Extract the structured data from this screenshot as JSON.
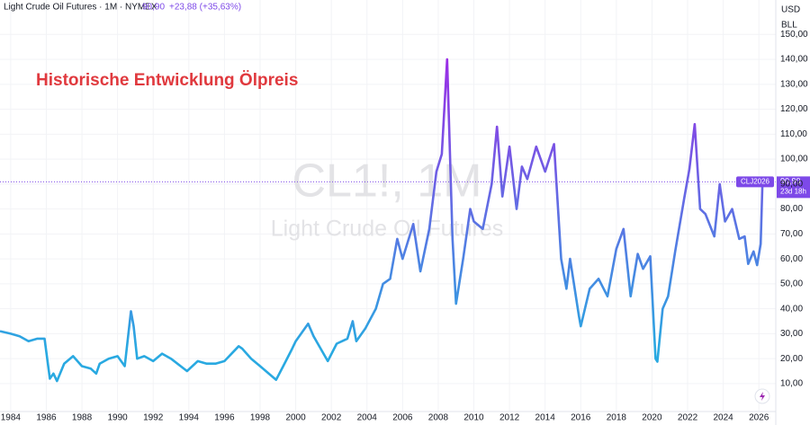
{
  "header": {
    "symbol": "Light Crude Oil Futures · 1M · NYMEX",
    "last": {
      "value": 90.9,
      "label": "90,90"
    },
    "change": "+23,88 (+35,63%)"
  },
  "axis_units": [
    "USD",
    "BLL"
  ],
  "watermark": {
    "symbol": "CL1!, 1M",
    "name": "Light Crude Oil Futures"
  },
  "price_label": {
    "contract": "CLJ2026",
    "countdown": "23d 18h"
  },
  "chart_data": {
    "type": "line",
    "title": "Historische Entwicklung Ölpreis",
    "colors": {
      "low": "#29a9e1",
      "high": "#9a2fe6"
    },
    "grid": true,
    "x": [
      1983.4,
      1984,
      1984.5,
      1985,
      1985.5,
      1985.9,
      1986.2,
      1986.4,
      1986.6,
      1987,
      1987.5,
      1988,
      1988.5,
      1988.8,
      1989,
      1989.5,
      1990,
      1990.4,
      1990.75,
      1990.9,
      1991.1,
      1991.5,
      1992,
      1992.5,
      1993,
      1993.9,
      1994.5,
      1995,
      1995.5,
      1996,
      1996.8,
      1997,
      1997.5,
      1998,
      1998.9,
      1999.3,
      1999.8,
      2000,
      2000.7,
      2001,
      2001.8,
      2002.3,
      2002.9,
      2003.2,
      2003.4,
      2003.9,
      2004.5,
      2004.9,
      2005.3,
      2005.7,
      2006,
      2006.6,
      2007,
      2007.5,
      2007.9,
      2008.2,
      2008.5,
      2008.8,
      2009,
      2009.4,
      2009.8,
      2010,
      2010.5,
      2011,
      2011.3,
      2011.6,
      2012,
      2012.4,
      2012.7,
      2013,
      2013.5,
      2014,
      2014.5,
      2014.9,
      2015.2,
      2015.4,
      2015.9,
      2016,
      2016.5,
      2017,
      2017.5,
      2018,
      2018.4,
      2018.8,
      2019.2,
      2019.5,
      2019.9,
      2020.2,
      2020.3,
      2020.6,
      2020.9,
      2021.3,
      2021.8,
      2022.1,
      2022.4,
      2022.7,
      2023,
      2023.5,
      2023.8,
      2024.1,
      2024.5,
      2024.9,
      2025.2,
      2025.4,
      2025.7,
      2025.9,
      2026.1,
      2026.2
    ],
    "values": [
      31,
      30,
      29,
      27,
      28,
      28,
      12,
      14,
      11,
      18,
      21,
      17,
      16,
      14,
      18,
      20,
      21,
      17,
      39,
      33,
      20,
      21,
      19,
      22,
      20,
      15,
      19,
      18,
      18,
      19,
      25,
      24,
      20,
      17,
      11.5,
      17,
      24,
      27,
      34,
      29,
      19,
      26,
      28,
      35,
      27,
      32,
      40,
      50,
      52,
      68,
      60,
      74,
      55,
      72,
      95,
      102,
      140,
      68,
      42,
      60,
      80,
      75,
      72,
      90,
      113,
      85,
      105,
      80,
      97,
      92,
      105,
      95,
      106,
      60,
      48,
      60,
      37,
      33,
      48,
      52,
      45,
      64,
      72,
      45,
      62,
      56,
      61,
      20,
      18.8,
      40,
      45,
      63,
      84,
      96,
      114,
      80,
      78,
      69,
      90,
      75,
      80,
      68,
      69,
      58,
      63,
      57.5,
      66,
      90.9
    ],
    "xlim": [
      1983.4,
      2026.95
    ],
    "ylim": [
      -1.2,
      163.8
    ],
    "xticks": [
      1984,
      1986,
      1988,
      1990,
      1992,
      1994,
      1996,
      1998,
      2000,
      2002,
      2004,
      2006,
      2008,
      2010,
      2012,
      2014,
      2016,
      2018,
      2020,
      2022,
      2024,
      2026
    ],
    "yticks": [
      {
        "value": 10,
        "label": "10,00"
      },
      {
        "value": 20,
        "label": "20,00"
      },
      {
        "value": 30,
        "label": "30,00"
      },
      {
        "value": 40,
        "label": "40,00"
      },
      {
        "value": 50,
        "label": "50,00"
      },
      {
        "value": 60,
        "label": "60,00"
      },
      {
        "value": 70,
        "label": "70,00"
      },
      {
        "value": 80,
        "label": "80,00"
      },
      {
        "value": 90,
        "label": "90,00"
      },
      {
        "value": 100,
        "label": "100,00"
      },
      {
        "value": 110,
        "label": "110,00"
      },
      {
        "value": 120,
        "label": "120,00"
      },
      {
        "value": 130,
        "label": "130,00"
      },
      {
        "value": 140,
        "label": "140,00"
      },
      {
        "value": 150,
        "label": "150,00"
      }
    ]
  }
}
